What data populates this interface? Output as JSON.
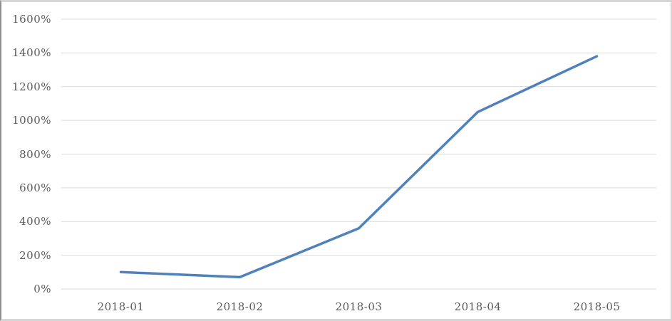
{
  "chart_data": {
    "type": "line",
    "title": "",
    "categories": [
      "2018-01",
      "2018-02",
      "2018-03",
      "2018-04",
      "2018-05"
    ],
    "series": [
      {
        "name": "",
        "values": [
          100,
          70,
          360,
          1050,
          1380
        ]
      }
    ],
    "unit": "%",
    "xlabel": "",
    "ylabel": "",
    "ylim": [
      0,
      1600
    ],
    "ytick_step": 200,
    "ytick_labels_desc": [
      "1600%",
      "1400%",
      "1200%",
      "1000%",
      "800%",
      "600%",
      "400%",
      "200%",
      "0%"
    ],
    "grid": true,
    "legend": false,
    "markers": false,
    "colors": {
      "line": "#4F81BD",
      "gridline": "#D9D9D9",
      "tick_label": "#595959",
      "background": "#FFFFFF"
    }
  }
}
